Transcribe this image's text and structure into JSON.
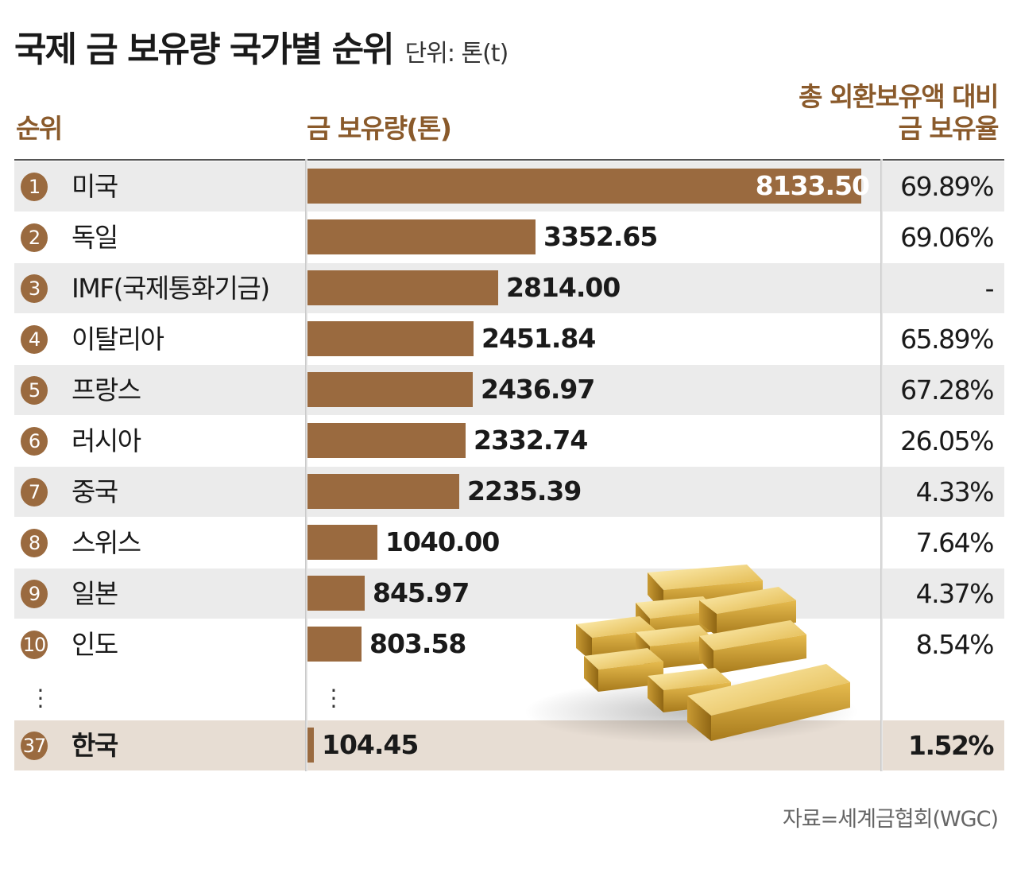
{
  "title": "국제 금 보유량 국가별 순위",
  "unit": "단위: 톤(t)",
  "header": {
    "rank": "순위",
    "gold": "금 보유량(톤)",
    "ratio_line1": "총 외환보유액 대비",
    "ratio_line2": "금 보유율"
  },
  "source": "자료=세계금협회(WGC)",
  "rows": [
    {
      "rank": "1",
      "country": "미국",
      "value": "8133.50",
      "pct": "69.89%"
    },
    {
      "rank": "2",
      "country": "독일",
      "value": "3352.65",
      "pct": "69.06%"
    },
    {
      "rank": "3",
      "country": "IMF(국제통화기금)",
      "value": "2814.00",
      "pct": "-"
    },
    {
      "rank": "4",
      "country": "이탈리아",
      "value": "2451.84",
      "pct": "65.89%"
    },
    {
      "rank": "5",
      "country": "프랑스",
      "value": "2436.97",
      "pct": "67.28%"
    },
    {
      "rank": "6",
      "country": "러시아",
      "value": "2332.74",
      "pct": "26.05%"
    },
    {
      "rank": "7",
      "country": "중국",
      "value": "2235.39",
      "pct": "4.33%"
    },
    {
      "rank": "8",
      "country": "스위스",
      "value": "1040.00",
      "pct": "7.64%"
    },
    {
      "rank": "9",
      "country": "일본",
      "value": "845.97",
      "pct": "4.37%"
    },
    {
      "rank": "10",
      "country": "인도",
      "value": "803.58",
      "pct": "8.54%"
    },
    {
      "rank": "37",
      "country": "한국",
      "value": "104.45",
      "pct": "1.52%"
    }
  ],
  "colors": {
    "accent": "#9a6a3f",
    "header_text": "#8a5a2b",
    "korea_row": "#e7ddd3",
    "shade_row": "#ebebeb"
  },
  "chart_data": {
    "type": "bar",
    "orientation": "horizontal",
    "title": "국제 금 보유량 국가별 순위",
    "ylabel": "금 보유량(톤)",
    "categories": [
      "미국",
      "독일",
      "IMF(국제통화기금)",
      "이탈리아",
      "프랑스",
      "러시아",
      "중국",
      "스위스",
      "일본",
      "인도",
      "한국"
    ],
    "values": [
      8133.5,
      3352.65,
      2814.0,
      2451.84,
      2436.97,
      2332.74,
      2235.39,
      1040.0,
      845.97,
      803.58,
      104.45
    ],
    "ratios": [
      "69.89%",
      "69.06%",
      "-",
      "65.89%",
      "67.28%",
      "26.05%",
      "4.33%",
      "7.64%",
      "4.37%",
      "8.54%",
      "1.52%"
    ],
    "grid": false
  }
}
